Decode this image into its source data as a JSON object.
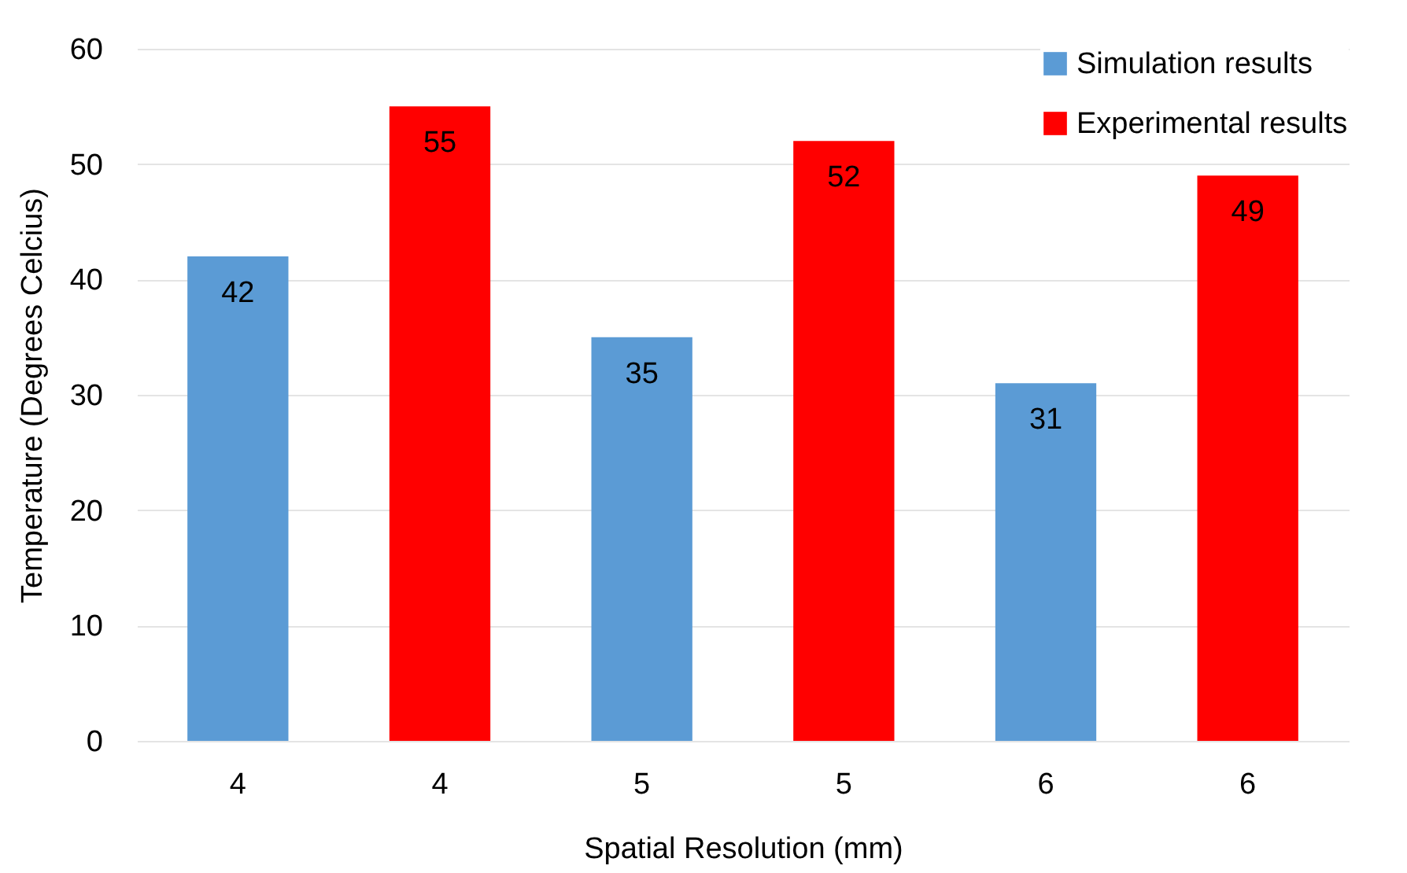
{
  "chart_data": {
    "type": "bar",
    "xlabel": "Spatial Resolution (mm)",
    "ylabel": "Temperature (Degrees Celcius)",
    "categories": [
      "4",
      "4",
      "5",
      "5",
      "6",
      "6"
    ],
    "series": [
      {
        "name": "Simulation results",
        "color": "#5b9bd5",
        "values": [
          42,
          null,
          35,
          null,
          31,
          null
        ]
      },
      {
        "name": "Experimental results",
        "color": "#ff0000",
        "values": [
          null,
          55,
          null,
          52,
          null,
          49
        ]
      }
    ],
    "ylim": [
      0,
      60
    ],
    "yticks": [
      0,
      10,
      20,
      30,
      40,
      50,
      60
    ],
    "grid": "y",
    "legend": "top right",
    "data_labels": true
  }
}
